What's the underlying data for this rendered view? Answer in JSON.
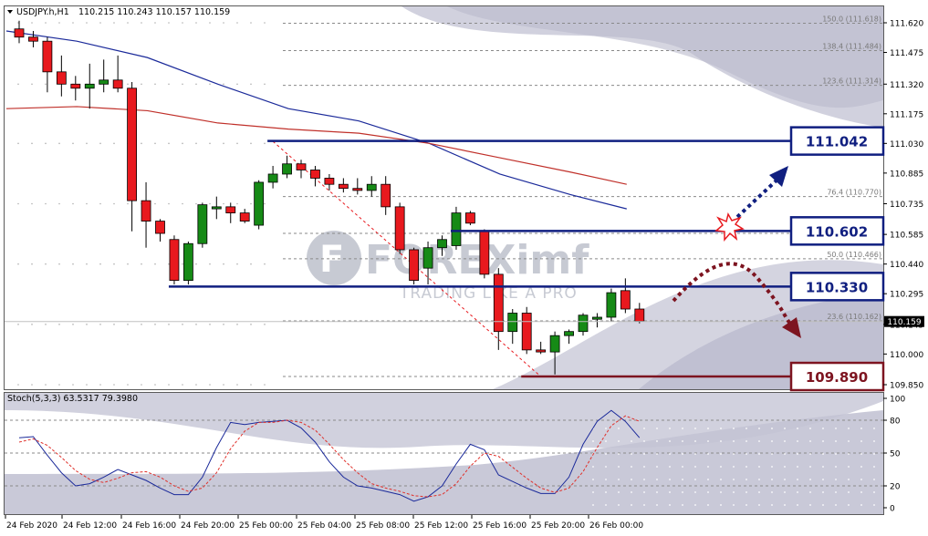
{
  "header": {
    "symbol": "USDJPY.h,H1",
    "ohlc": "110.215 110.243 110.157 110.159"
  },
  "stoch_header": "Stoch(5,3,3) 63.5317 79.3980",
  "watermark": {
    "brand": "FOREXimf",
    "tagline": "TRADING LIKE A PRO"
  },
  "colors": {
    "bull": "#168a16",
    "bear": "#e8191e",
    "level": "#101f80",
    "support": "#7d1420",
    "ma_fast": "#1b2a9a",
    "ma_slow": "#c0302a",
    "stoch_main": "#1b2a9a",
    "stoch_signal": "#e0302a"
  },
  "chart_data": [
    {
      "type": "candlestick",
      "instrument": "USDJPY",
      "timeframe": "H1",
      "ylim": [
        109.85,
        111.62
      ],
      "y_ticks": [
        111.62,
        111.475,
        111.32,
        111.175,
        111.03,
        110.885,
        110.735,
        110.585,
        110.44,
        110.295,
        110.145,
        110.0,
        109.85
      ],
      "x_ticks": [
        "24 Feb 2020",
        "24 Feb 12:00",
        "24 Feb 16:00",
        "24 Feb 20:00",
        "25 Feb 00:00",
        "25 Feb 04:00",
        "25 Feb 08:00",
        "25 Feb 12:00",
        "25 Feb 16:00",
        "25 Feb 20:00",
        "26 Feb 00:00"
      ],
      "current_price": "110.159",
      "candles": [
        {
          "o": 111.59,
          "h": 111.63,
          "l": 111.52,
          "c": 111.55
        },
        {
          "o": 111.55,
          "h": 111.58,
          "l": 111.5,
          "c": 111.53
        },
        {
          "o": 111.53,
          "h": 111.55,
          "l": 111.28,
          "c": 111.38
        },
        {
          "o": 111.38,
          "h": 111.46,
          "l": 111.26,
          "c": 111.32
        },
        {
          "o": 111.32,
          "h": 111.36,
          "l": 111.24,
          "c": 111.3
        },
        {
          "o": 111.3,
          "h": 111.42,
          "l": 111.2,
          "c": 111.32
        },
        {
          "o": 111.32,
          "h": 111.44,
          "l": 111.28,
          "c": 111.34
        },
        {
          "o": 111.34,
          "h": 111.46,
          "l": 111.28,
          "c": 111.3
        },
        {
          "o": 111.3,
          "h": 111.33,
          "l": 110.6,
          "c": 110.75
        },
        {
          "o": 110.75,
          "h": 110.84,
          "l": 110.52,
          "c": 110.65
        },
        {
          "o": 110.65,
          "h": 110.66,
          "l": 110.55,
          "c": 110.59
        },
        {
          "o": 110.56,
          "h": 110.58,
          "l": 110.34,
          "c": 110.36
        },
        {
          "o": 110.36,
          "h": 110.55,
          "l": 110.34,
          "c": 110.54
        },
        {
          "o": 110.54,
          "h": 110.74,
          "l": 110.52,
          "c": 110.73
        },
        {
          "o": 110.71,
          "h": 110.77,
          "l": 110.66,
          "c": 110.72
        },
        {
          "o": 110.72,
          "h": 110.74,
          "l": 110.64,
          "c": 110.69
        },
        {
          "o": 110.69,
          "h": 110.71,
          "l": 110.64,
          "c": 110.65
        },
        {
          "o": 110.63,
          "h": 110.85,
          "l": 110.61,
          "c": 110.84
        },
        {
          "o": 110.84,
          "h": 110.92,
          "l": 110.81,
          "c": 110.88
        },
        {
          "o": 110.88,
          "h": 110.97,
          "l": 110.86,
          "c": 110.93
        },
        {
          "o": 110.93,
          "h": 110.95,
          "l": 110.86,
          "c": 110.9
        },
        {
          "o": 110.9,
          "h": 110.92,
          "l": 110.82,
          "c": 110.86
        },
        {
          "o": 110.86,
          "h": 110.88,
          "l": 110.8,
          "c": 110.83
        },
        {
          "o": 110.83,
          "h": 110.86,
          "l": 110.79,
          "c": 110.81
        },
        {
          "o": 110.81,
          "h": 110.86,
          "l": 110.78,
          "c": 110.8
        },
        {
          "o": 110.8,
          "h": 110.87,
          "l": 110.77,
          "c": 110.83
        },
        {
          "o": 110.83,
          "h": 110.87,
          "l": 110.68,
          "c": 110.72
        },
        {
          "o": 110.72,
          "h": 110.74,
          "l": 110.49,
          "c": 110.51
        },
        {
          "o": 110.51,
          "h": 110.52,
          "l": 110.34,
          "c": 110.36
        },
        {
          "o": 110.42,
          "h": 110.55,
          "l": 110.34,
          "c": 110.52
        },
        {
          "o": 110.52,
          "h": 110.58,
          "l": 110.48,
          "c": 110.56
        },
        {
          "o": 110.53,
          "h": 110.72,
          "l": 110.51,
          "c": 110.69
        },
        {
          "o": 110.69,
          "h": 110.7,
          "l": 110.63,
          "c": 110.64
        },
        {
          "o": 110.6,
          "h": 110.61,
          "l": 110.37,
          "c": 110.39
        },
        {
          "o": 110.39,
          "h": 110.42,
          "l": 110.02,
          "c": 110.11
        },
        {
          "o": 110.11,
          "h": 110.22,
          "l": 110.05,
          "c": 110.2
        },
        {
          "o": 110.2,
          "h": 110.23,
          "l": 110.0,
          "c": 110.02
        },
        {
          "o": 110.02,
          "h": 110.06,
          "l": 110.0,
          "c": 110.01
        },
        {
          "o": 110.01,
          "h": 110.11,
          "l": 109.9,
          "c": 110.09
        },
        {
          "o": 110.09,
          "h": 110.12,
          "l": 110.05,
          "c": 110.11
        },
        {
          "o": 110.11,
          "h": 110.2,
          "l": 110.09,
          "c": 110.19
        },
        {
          "o": 110.17,
          "h": 110.2,
          "l": 110.13,
          "c": 110.18
        },
        {
          "o": 110.18,
          "h": 110.32,
          "l": 110.16,
          "c": 110.3
        },
        {
          "o": 110.31,
          "h": 110.37,
          "l": 110.2,
          "c": 110.22
        },
        {
          "o": 110.22,
          "h": 110.25,
          "l": 110.15,
          "c": 110.16
        }
      ],
      "moving_averages": [
        {
          "color_key": "ma_fast",
          "points": [
            [
              0,
              111.58
            ],
            [
              5,
              111.53
            ],
            [
              10,
              111.45
            ],
            [
              15,
              111.32
            ],
            [
              20,
              111.2
            ],
            [
              25,
              111.14
            ],
            [
              30,
              111.03
            ],
            [
              35,
              110.88
            ],
            [
              40,
              110.78
            ],
            [
              44,
              110.71
            ]
          ]
        },
        {
          "color_key": "ma_slow",
          "points": [
            [
              0,
              111.2
            ],
            [
              5,
              111.21
            ],
            [
              10,
              111.19
            ],
            [
              15,
              111.13
            ],
            [
              20,
              111.1
            ],
            [
              25,
              111.08
            ],
            [
              30,
              111.03
            ],
            [
              35,
              110.96
            ],
            [
              40,
              110.89
            ],
            [
              44,
              110.83
            ]
          ]
        }
      ],
      "fibonacci_levels": [
        {
          "label": "150.0 (111.618)",
          "value": 111.618
        },
        {
          "label": "138.4 (111.484)",
          "value": 111.484
        },
        {
          "label": "123.6 (111.314)",
          "value": 111.314
        },
        {
          "label": "76.4 (110.770)",
          "value": 110.77
        },
        {
          "label": "50.0 (110.466)",
          "value": 110.466
        },
        {
          "label": "23.6 (110.162)",
          "value": 110.162
        },
        {
          "label": "",
          "value": 110.59
        },
        {
          "label": "",
          "value": 109.89
        }
      ],
      "fib_swing": {
        "from_index": 18,
        "from_value": 111.04,
        "to_index": 37,
        "to_value": 109.89
      },
      "key_levels": [
        {
          "label": "111.042",
          "value": 111.042,
          "from_index": 18,
          "kind": "resistance"
        },
        {
          "label": "110.602",
          "value": 110.602,
          "from_index": 31,
          "kind": "resistance"
        },
        {
          "label": "110.330",
          "value": 110.33,
          "from_index": 11,
          "kind": "resistance"
        },
        {
          "label": "109.890",
          "value": 109.89,
          "from_index": 36,
          "kind": "support"
        }
      ]
    },
    {
      "type": "line",
      "indicator": "Stochastic",
      "ylim": [
        0,
        100
      ],
      "y_ticks": [
        100,
        80,
        50,
        20,
        0
      ],
      "levels": [
        80,
        50,
        20
      ],
      "series": [
        {
          "color_key": "stoch_main",
          "values": [
            64,
            65,
            48,
            32,
            20,
            22,
            28,
            35,
            30,
            25,
            18,
            12,
            12,
            28,
            55,
            78,
            76,
            78,
            79,
            80,
            73,
            60,
            42,
            28,
            20,
            18,
            15,
            12,
            6,
            10,
            20,
            40,
            58,
            53,
            30,
            24,
            18,
            13,
            13,
            28,
            58,
            79,
            89,
            79,
            64
          ]
        },
        {
          "color_key": "stoch_signal",
          "values": [
            60,
            63,
            57,
            46,
            34,
            26,
            23,
            27,
            32,
            33,
            28,
            20,
            15,
            18,
            32,
            54,
            70,
            78,
            78,
            80,
            78,
            71,
            58,
            44,
            32,
            22,
            18,
            15,
            11,
            10,
            12,
            22,
            38,
            50,
            47,
            37,
            27,
            18,
            14,
            18,
            33,
            55,
            75,
            84,
            79
          ]
        }
      ]
    }
  ]
}
